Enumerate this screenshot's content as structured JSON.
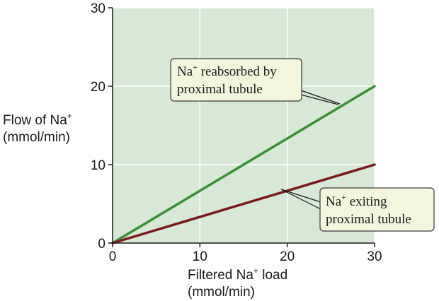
{
  "chart_data": {
    "type": "line",
    "xlabel": {
      "line1_pre": "Filtered Na",
      "line1_sup": "+",
      "line1_post": " load",
      "line2": "(mmol/min)"
    },
    "ylabel": {
      "line1_pre": "Flow of Na",
      "line1_sup": "+",
      "line2": "(mmol/min)"
    },
    "xlim": [
      0,
      30
    ],
    "ylim": [
      0,
      30
    ],
    "x_ticks": [
      "0",
      "10",
      "20",
      "30"
    ],
    "y_ticks": [
      "0",
      "10",
      "20",
      "30"
    ],
    "grid": true,
    "series": [
      {
        "name": "Na+ reabsorbed by proximal tubule",
        "color": "#3a8f35",
        "x": [
          0,
          30
        ],
        "y": [
          0,
          20
        ]
      },
      {
        "name": "Na+ exiting proximal tubule",
        "color": "#7a1a1e",
        "x": [
          0,
          30
        ],
        "y": [
          0,
          10
        ]
      }
    ],
    "annotations": [
      {
        "series": "Na+ reabsorbed by proximal tubule",
        "line1_pre": "Na",
        "line1_sup": "+",
        "line1_post": " reabsorbed by",
        "line2": "proximal tubule"
      },
      {
        "series": "Na+ exiting proximal tubule",
        "line1_pre": "Na",
        "line1_sup": "+",
        "line1_post": " exiting",
        "line2": "proximal tubule"
      }
    ]
  },
  "colors": {
    "plot_background": "#d8e8d6",
    "grid": "#ffffff",
    "callout_fill": "#f3f6dd",
    "callout_border": "#3a3a3a"
  }
}
